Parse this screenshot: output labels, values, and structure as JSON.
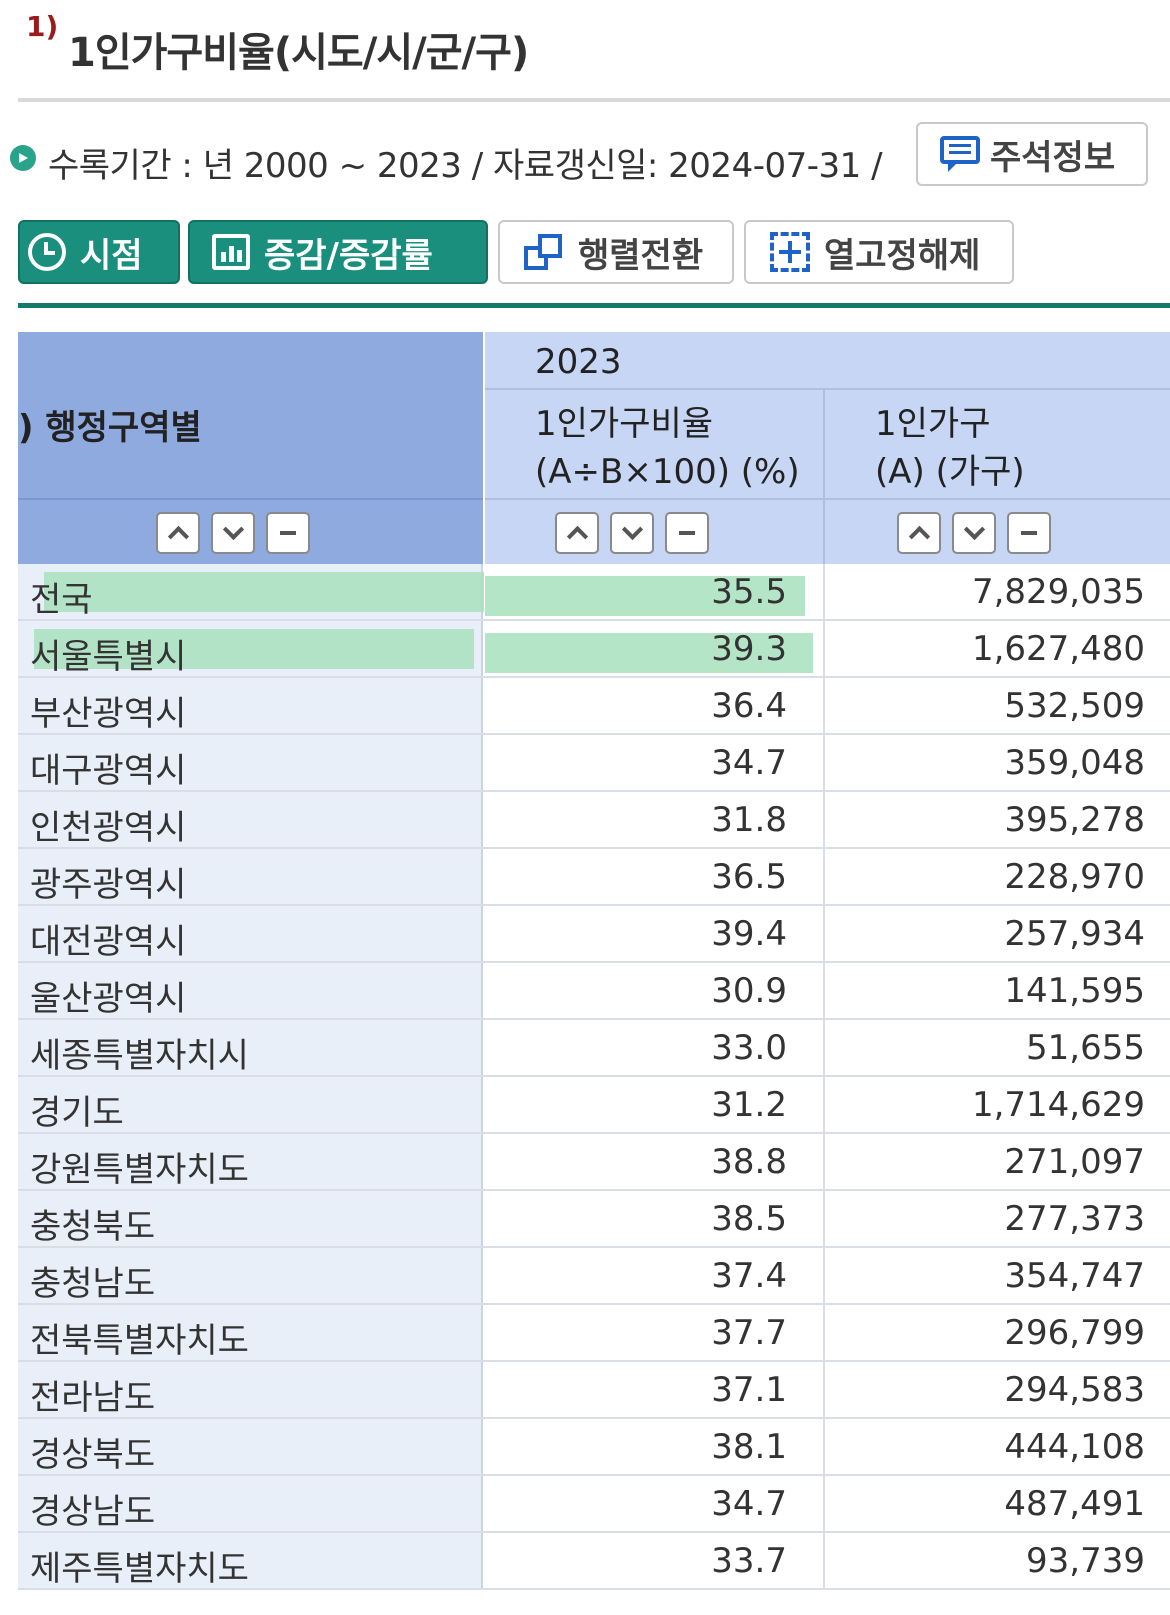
{
  "title": {
    "sup": "1)",
    "text": "1인가구비율(시도/시/군/구)"
  },
  "info": {
    "text": "수록기간 : 년 2000 ~ 2023 / 자료갱신일: 2024-07-31 /",
    "note_button": "주석정보"
  },
  "toolbar": {
    "time": "시점",
    "change": "증감/증감률",
    "pivot": "행렬전환",
    "freeze": "열고정해제"
  },
  "table": {
    "region_header": ") 행정구역별",
    "year": "2023",
    "col1_line1": "1인가구비율",
    "col1_line2": "(A÷B×100) (%)",
    "col2_line1": "1인가구",
    "col2_line2": "(A) (가구)",
    "rows": [
      {
        "region": "전국",
        "ratio": "35.5",
        "households": "7,829,035",
        "highlight": 1.0
      },
      {
        "region": "서울특별시",
        "ratio": "39.3",
        "households": "1,627,480",
        "highlight": 1.0
      },
      {
        "region": "부산광역시",
        "ratio": "36.4",
        "households": "532,509"
      },
      {
        "region": "대구광역시",
        "ratio": "34.7",
        "households": "359,048"
      },
      {
        "region": "인천광역시",
        "ratio": "31.8",
        "households": "395,278"
      },
      {
        "region": "광주광역시",
        "ratio": "36.5",
        "households": "228,970"
      },
      {
        "region": "대전광역시",
        "ratio": "39.4",
        "households": "257,934"
      },
      {
        "region": "울산광역시",
        "ratio": "30.9",
        "households": "141,595"
      },
      {
        "region": "세종특별자치시",
        "ratio": "33.0",
        "households": "51,655"
      },
      {
        "region": "경기도",
        "ratio": "31.2",
        "households": "1,714,629"
      },
      {
        "region": "강원특별자치도",
        "ratio": "38.8",
        "households": "271,097"
      },
      {
        "region": "충청북도",
        "ratio": "38.5",
        "households": "277,373"
      },
      {
        "region": "충청남도",
        "ratio": "37.4",
        "households": "354,747"
      },
      {
        "region": "전북특별자치도",
        "ratio": "37.7",
        "households": "296,799"
      },
      {
        "region": "전라남도",
        "ratio": "37.1",
        "households": "294,583"
      },
      {
        "region": "경상북도",
        "ratio": "38.1",
        "households": "444,108"
      },
      {
        "region": "경상남도",
        "ratio": "34.7",
        "households": "487,491"
      },
      {
        "region": "제주특별자치도",
        "ratio": "33.7",
        "households": "93,739"
      }
    ]
  },
  "colors": {
    "accent": "#1a8f7d",
    "header_dark": "#8eaadf",
    "header_light": "#c6d6f4",
    "highlight": "#a8e0bd",
    "icon_blue": "#1f63c6"
  }
}
